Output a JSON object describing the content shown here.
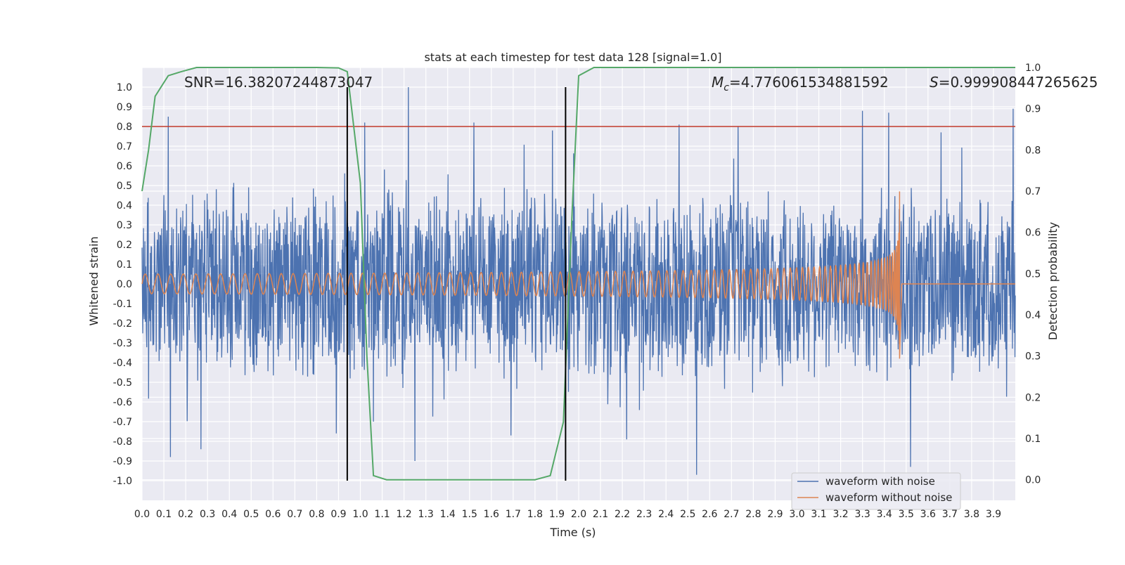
{
  "chart_data": {
    "type": "line",
    "title": "stats at each timestep for test data 128 [signal=1.0]",
    "xlabel": "Time (s)",
    "ylabel": "Whitened strain",
    "ylabel_right": "Detection probability",
    "xlim": [
      0.0,
      4.0
    ],
    "ylim": [
      -1.1,
      1.1
    ],
    "ylim_right": [
      -0.05,
      1.0
    ],
    "x_ticks": [
      "0.0",
      "0.1",
      "0.2",
      "0.3",
      "0.4",
      "0.5",
      "0.6",
      "0.7",
      "0.8",
      "0.9",
      "1.0",
      "1.1",
      "1.2",
      "1.3",
      "1.4",
      "1.5",
      "1.6",
      "1.7",
      "1.8",
      "1.9",
      "2.0",
      "2.1",
      "2.2",
      "2.3",
      "2.4",
      "2.5",
      "2.6",
      "2.7",
      "2.8",
      "2.9",
      "3.0",
      "3.1",
      "3.2",
      "3.3",
      "3.4",
      "3.5",
      "3.6",
      "3.7",
      "3.8",
      "3.9"
    ],
    "y_ticks": [
      "1.0",
      "0.9",
      "0.8",
      "0.7",
      "0.6",
      "0.5",
      "0.4",
      "0.3",
      "0.2",
      "0.1",
      "0.0",
      "-0.1",
      "-0.2",
      "-0.3",
      "-0.4",
      "-0.5",
      "-0.6",
      "-0.7",
      "-0.8",
      "-0.9",
      "-1.0"
    ],
    "y_ticks_right": [
      "1.0",
      "0.9",
      "0.8",
      "0.7",
      "0.6",
      "0.5",
      "0.4",
      "0.3",
      "0.2",
      "0.1",
      "0.0"
    ],
    "grid": true,
    "legend_position": "bottom-right",
    "annotations": {
      "snr": "SNR=16.38207244873047",
      "mc_symbol": "M",
      "mc_sub": "c",
      "mc_value": "=4.776061534881592",
      "s_symbol": "S",
      "s_value": "=0.999908447265625"
    },
    "threshold": {
      "y": 0.8,
      "color": "#c0392b"
    },
    "vertical_lines": [
      0.94,
      1.94
    ],
    "series": [
      {
        "name": "waveform with noise",
        "color": "#4c72b0",
        "kind": "noise",
        "envelope": 0.45,
        "spikes": [
          [
            0.12,
            0.85
          ],
          [
            0.13,
            -0.88
          ],
          [
            0.27,
            -0.84
          ],
          [
            0.89,
            -0.76
          ],
          [
            1.02,
            0.82
          ],
          [
            1.06,
            -0.7
          ],
          [
            1.22,
            1.0
          ],
          [
            1.25,
            -0.9
          ],
          [
            1.52,
            0.82
          ],
          [
            1.69,
            -0.77
          ],
          [
            1.88,
            0.78
          ],
          [
            2.22,
            -0.79
          ],
          [
            2.46,
            0.81
          ],
          [
            2.54,
            -0.97
          ],
          [
            2.73,
            0.8
          ],
          [
            3.3,
            0.88
          ],
          [
            3.42,
            0.87
          ],
          [
            3.52,
            -0.93
          ],
          [
            3.66,
            0.77
          ],
          [
            3.99,
            0.89
          ]
        ]
      },
      {
        "name": "waveform without noise",
        "color": "#dd8452",
        "kind": "chirp",
        "base_amplitude": 0.05,
        "merger_time": 3.47,
        "peak_max": 0.47,
        "peak_min": -0.38
      },
      {
        "name": "detection probability",
        "color": "#55a868",
        "axis": "right",
        "x": [
          0.0,
          0.03,
          0.06,
          0.12,
          0.18,
          0.25,
          0.4,
          0.6,
          0.8,
          0.9,
          0.94,
          1.0,
          1.03,
          1.06,
          1.12,
          1.2,
          1.4,
          1.6,
          1.8,
          1.87,
          1.93,
          1.97,
          2.0,
          2.07,
          2.3,
          2.6,
          3.0,
          3.5,
          4.0
        ],
        "y": [
          0.7,
          0.8,
          0.93,
          0.98,
          0.99,
          1.0,
          1.0,
          1.0,
          1.0,
          0.999,
          0.99,
          0.72,
          0.3,
          0.01,
          0.0,
          0.0,
          0.0,
          0.0,
          0.0,
          0.01,
          0.14,
          0.65,
          0.98,
          1.0,
          1.0,
          1.0,
          1.0,
          1.0,
          1.0
        ]
      }
    ]
  }
}
